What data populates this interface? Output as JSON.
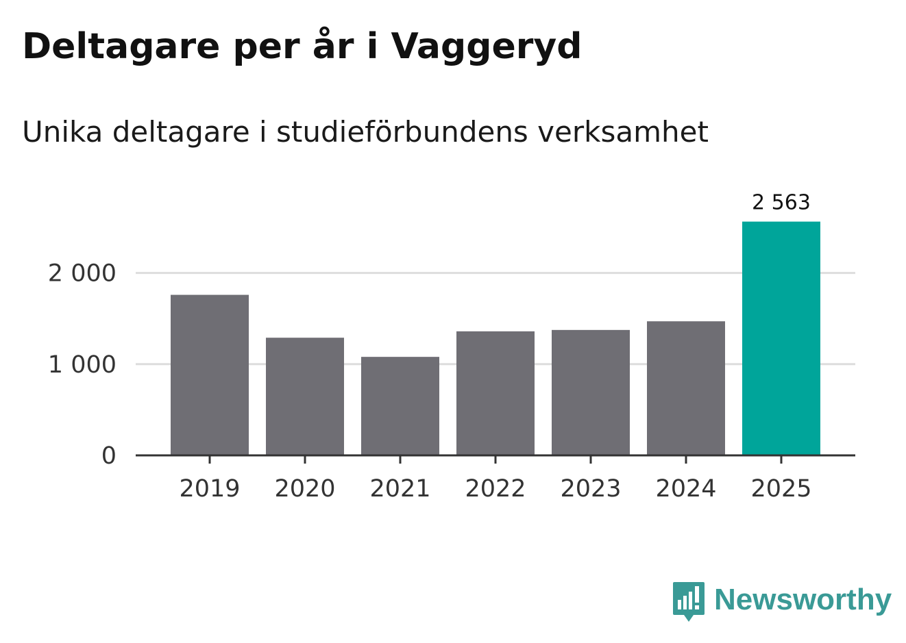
{
  "header": {
    "title": "Deltagare per år i Vaggeryd",
    "subtitle": "Unika deltagare i studieförbundens verksamhet"
  },
  "brand": {
    "name": "Newsworthy",
    "logo_icon": "newsworthy-logo-icon",
    "color": "#3a9a96"
  },
  "colors": {
    "bar_default": "#6f6e74",
    "bar_highlight": "#00a59a",
    "gridline": "#dddddd",
    "axis": "#333333"
  },
  "chart_data": {
    "type": "bar",
    "title": "Deltagare per år i Vaggeryd",
    "subtitle": "Unika deltagare i studieförbundens verksamhet",
    "categories": [
      "2019",
      "2020",
      "2021",
      "2022",
      "2023",
      "2024",
      "2025"
    ],
    "values": [
      1760,
      1290,
      1080,
      1360,
      1375,
      1470,
      2563
    ],
    "highlight_index": 6,
    "data_labels": [
      null,
      null,
      null,
      null,
      null,
      null,
      "2 563"
    ],
    "xlabel": "",
    "ylabel": "",
    "ylim": [
      0,
      2563
    ],
    "yticks": [
      0,
      1000,
      2000
    ],
    "ytick_labels": [
      "0",
      "1 000",
      "2 000"
    ],
    "grid": true,
    "legend": "none"
  }
}
